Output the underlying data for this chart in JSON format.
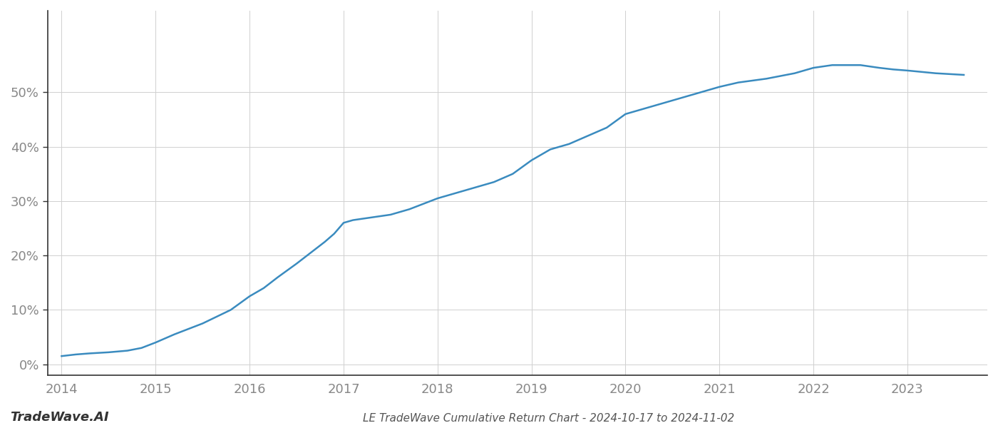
{
  "x": [
    2014.0,
    2014.15,
    2014.3,
    2014.5,
    2014.7,
    2014.85,
    2015.0,
    2015.2,
    2015.5,
    2015.8,
    2016.0,
    2016.15,
    2016.3,
    2016.5,
    2016.65,
    2016.8,
    2016.9,
    2017.0,
    2017.1,
    2017.3,
    2017.5,
    2017.7,
    2017.85,
    2018.0,
    2018.2,
    2018.4,
    2018.6,
    2018.8,
    2019.0,
    2019.2,
    2019.4,
    2019.6,
    2019.8,
    2020.0,
    2020.2,
    2020.5,
    2020.8,
    2021.0,
    2021.2,
    2021.5,
    2021.8,
    2022.0,
    2022.2,
    2022.5,
    2022.7,
    2022.85,
    2023.0,
    2023.3,
    2023.6
  ],
  "y": [
    1.5,
    1.8,
    2.0,
    2.2,
    2.5,
    3.0,
    4.0,
    5.5,
    7.5,
    10.0,
    12.5,
    14.0,
    16.0,
    18.5,
    20.5,
    22.5,
    24.0,
    26.0,
    26.5,
    27.0,
    27.5,
    28.5,
    29.5,
    30.5,
    31.5,
    32.5,
    33.5,
    35.0,
    37.5,
    39.5,
    40.5,
    42.0,
    43.5,
    46.0,
    47.0,
    48.5,
    50.0,
    51.0,
    51.8,
    52.5,
    53.5,
    54.5,
    55.0,
    55.0,
    54.5,
    54.2,
    54.0,
    53.5,
    53.2
  ],
  "line_color": "#3a8bbf",
  "line_width": 1.8,
  "xlabel_ticks": [
    2014,
    2015,
    2016,
    2017,
    2018,
    2019,
    2020,
    2021,
    2022,
    2023
  ],
  "yticks": [
    0,
    10,
    20,
    30,
    40,
    50
  ],
  "ylim": [
    -2,
    65
  ],
  "xlim": [
    2013.85,
    2023.85
  ],
  "background_color": "#ffffff",
  "grid_color": "#d0d0d0",
  "bottom_label": "LE TradeWave Cumulative Return Chart - 2024-10-17 to 2024-11-02",
  "watermark": "TradeWave.AI",
  "tick_fontsize": 13,
  "label_fontsize": 11,
  "watermark_fontsize": 13
}
